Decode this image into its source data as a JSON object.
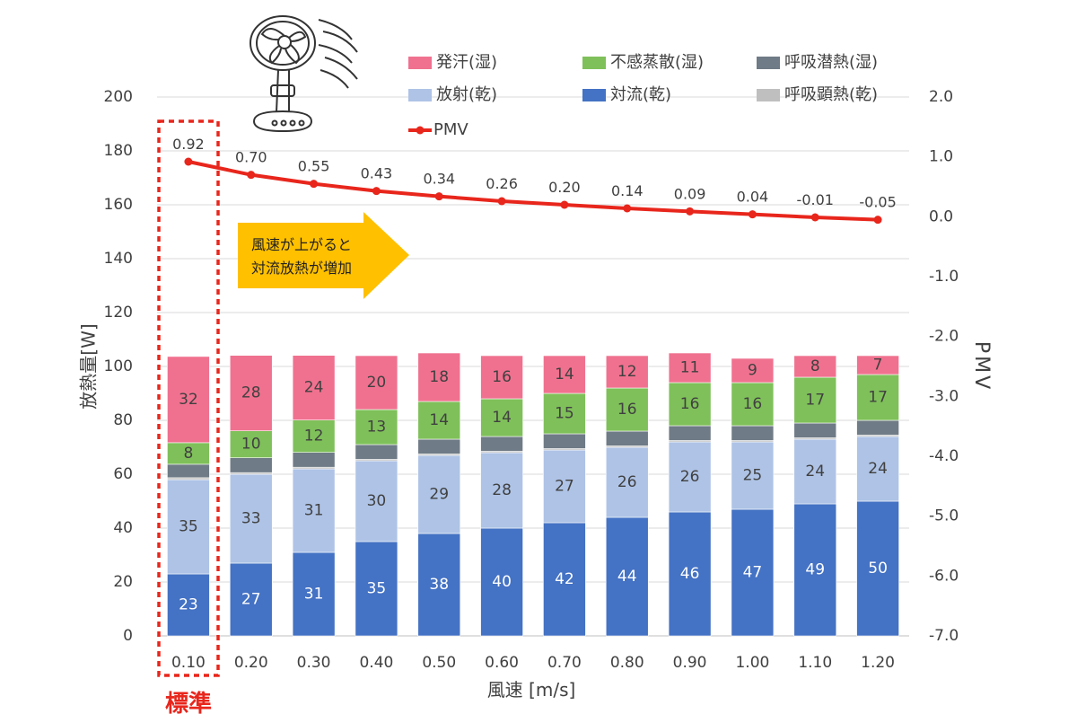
{
  "chart_data": {
    "type": "bar",
    "stacked": true,
    "x": [
      "0.10",
      "0.20",
      "0.30",
      "0.40",
      "0.50",
      "0.60",
      "0.70",
      "0.80",
      "0.90",
      "1.00",
      "1.10",
      "1.20"
    ],
    "xlabel": "風速 [m/s]",
    "ylabel": "放熱量[W]",
    "y2label": "PMV",
    "ylim": [
      0,
      200
    ],
    "y2lim": [
      -7.0,
      2.0
    ],
    "yticks": [
      "0",
      "20",
      "40",
      "60",
      "80",
      "100",
      "120",
      "140",
      "160",
      "180",
      "200"
    ],
    "y2ticks": [
      "-7.0",
      "-6.0",
      "-5.0",
      "-4.0",
      "-3.0",
      "-2.0",
      "-1.0",
      "0.0",
      "1.0",
      "2.0"
    ],
    "series": [
      {
        "name": "対流(乾)",
        "color": "#4472c4",
        "label_color": "#ffffff",
        "values": [
          23,
          27,
          31,
          35,
          38,
          40,
          42,
          44,
          46,
          47,
          49,
          50
        ],
        "labels": [
          "23",
          "27",
          "31",
          "35",
          "38",
          "40",
          "42",
          "44",
          "46",
          "47",
          "49",
          "50"
        ]
      },
      {
        "name": "放射(乾)",
        "color": "#aec3e6",
        "label_color": "#404040",
        "values": [
          35,
          33,
          31,
          30,
          29,
          28,
          27,
          26,
          26,
          25,
          24,
          24
        ],
        "labels": [
          "35",
          "33",
          "31",
          "30",
          "29",
          "28",
          "27",
          "26",
          "26",
          "25",
          "24",
          "24"
        ]
      },
      {
        "name": "呼吸顕熱(乾)",
        "color": "#bfbfbf",
        "label_color": "#404040",
        "values": [
          0.7,
          0.6,
          0.6,
          0.5,
          0.5,
          0.5,
          0.5,
          0.5,
          0.5,
          0.5,
          0.5,
          0.5
        ],
        "labels": []
      },
      {
        "name": "呼吸潜熱(湿)",
        "color": "#6f7b86",
        "label_color": "#404040",
        "values": [
          5,
          5.5,
          5.5,
          5.5,
          5.5,
          5.5,
          5.5,
          5.5,
          5.5,
          5.5,
          5.5,
          5.5
        ],
        "labels": []
      },
      {
        "name": "不感蒸散(湿)",
        "color": "#7fc05a",
        "label_color": "#404040",
        "values": [
          8,
          10,
          12,
          13,
          14,
          14,
          15,
          16,
          16,
          16,
          17,
          17
        ],
        "labels": [
          "8",
          "10",
          "12",
          "13",
          "14",
          "14",
          "15",
          "16",
          "16",
          "16",
          "17",
          "17"
        ]
      },
      {
        "name": "発汗(湿)",
        "color": "#f0718f",
        "label_color": "#404040",
        "values": [
          32,
          28,
          24,
          20,
          18,
          16,
          14,
          12,
          11,
          9,
          8,
          7
        ],
        "labels": [
          "32",
          "28",
          "24",
          "20",
          "18",
          "16",
          "14",
          "12",
          "11",
          "9",
          "8",
          "7"
        ]
      }
    ],
    "line": {
      "name": "PMV",
      "color": "#e8261c",
      "axis": "right",
      "values": [
        0.92,
        0.7,
        0.55,
        0.43,
        0.34,
        0.26,
        0.2,
        0.14,
        0.09,
        0.04,
        -0.01,
        -0.05
      ],
      "labels": [
        "0.92",
        "0.70",
        "0.55",
        "0.43",
        "0.34",
        "0.26",
        "0.20",
        "0.14",
        "0.09",
        "0.04",
        "-0.01",
        "-0.05"
      ]
    },
    "legend": {
      "placement": "top-right",
      "items": [
        {
          "name": "発汗(湿)",
          "color": "#f0718f",
          "kind": "box"
        },
        {
          "name": "不感蒸散(湿)",
          "color": "#7fc05a",
          "kind": "box"
        },
        {
          "name": "呼吸潜熱(湿)",
          "color": "#6f7b86",
          "kind": "box"
        },
        {
          "name": "放射(乾)",
          "color": "#aec3e6",
          "kind": "box"
        },
        {
          "name": "対流(乾)",
          "color": "#4472c4",
          "kind": "box"
        },
        {
          "name": "呼吸顕熱(乾)",
          "color": "#bfbfbf",
          "kind": "box"
        },
        {
          "name": "PMV",
          "color": "#e8261c",
          "kind": "line"
        }
      ]
    },
    "annotations": {
      "arrow_lines": [
        "風速が上がると",
        "対流放熱が増加"
      ],
      "arrow_color": "#ffc000",
      "standard_label": "標準",
      "standard_color": "#e8261c",
      "highlight_category": "0.10",
      "icon": "electric-fan-icon"
    }
  }
}
